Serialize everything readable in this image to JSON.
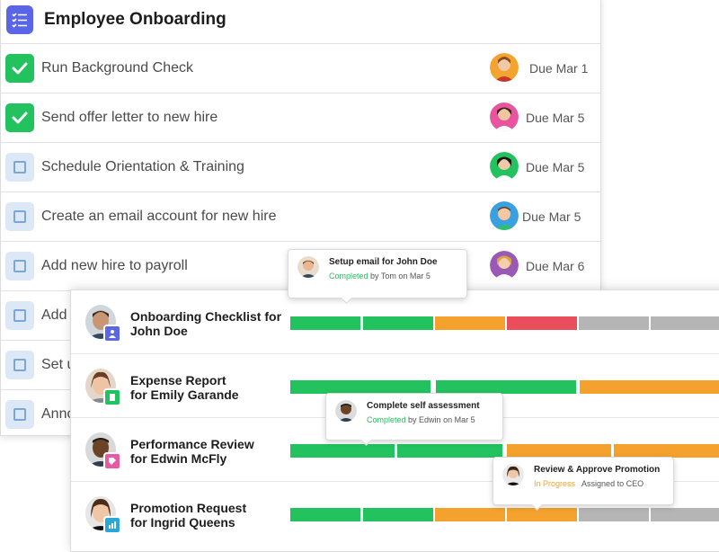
{
  "checklist": {
    "title": "Employee Onboarding",
    "tasks": [
      {
        "label": "Run Background Check",
        "due": "Due Mar 1",
        "done": true
      },
      {
        "label": "Send offer letter to new hire",
        "due": "Due Mar 5",
        "done": true
      },
      {
        "label": "Schedule Orientation & Training",
        "due": "Due Mar 5",
        "done": false
      },
      {
        "label": "Create an email account for new hire",
        "due": "Due Mar 5",
        "done": false
      },
      {
        "label": "Add new hire to payroll",
        "due": "Due Mar 6",
        "done": false
      },
      {
        "label": "Add",
        "due": "",
        "done": false
      },
      {
        "label": "Set u",
        "due": "",
        "done": false
      },
      {
        "label": "Anno",
        "due": "",
        "done": false
      }
    ]
  },
  "workflows": [
    {
      "title_line1": "Onboarding Checklist for",
      "title_line2": "John Doe",
      "badge_icon": "user-icon",
      "badge_color": "#5a66e6",
      "segments": [
        "green",
        "green",
        "orange",
        "red",
        "gray",
        "gray"
      ]
    },
    {
      "title_line1": "Expense Report",
      "title_line2": "for Emily Garande",
      "badge_icon": "document-icon",
      "badge_color": "#22c35e",
      "segments": [
        "green",
        "green",
        "orange"
      ]
    },
    {
      "title_line1": "Performance Review",
      "title_line2": "for Edwin McFly",
      "badge_icon": "tag-icon",
      "badge_color": "#e85aa4",
      "segments": [
        "green",
        "green",
        "orange",
        "orange"
      ]
    },
    {
      "title_line1": "Promotion Request",
      "title_line2": "for Ingrid Queens",
      "badge_icon": "chart-icon",
      "badge_color": "#2aa7d8",
      "segments": [
        "green",
        "green",
        "orange",
        "orange",
        "gray",
        "gray"
      ]
    }
  ],
  "tooltips": [
    {
      "title": "Setup email for John Doe",
      "status": "Completed",
      "detail": "by Tom on Mar 5",
      "status_color": "#22c35e"
    },
    {
      "title": "Complete self assessment",
      "status": "Completed",
      "detail": "by Edwin on Mar 5",
      "status_color": "#22c35e"
    },
    {
      "title": "Review & Approve Promotion",
      "status": "In Progress",
      "detail": "Assigned to CEO",
      "status_color": "#f4a22d"
    }
  ],
  "colors": {
    "green": "#22c35e",
    "orange": "#f4a22d",
    "red": "#ea4d5b",
    "gray": "#b5b5b5",
    "accent": "#5a66e6"
  }
}
